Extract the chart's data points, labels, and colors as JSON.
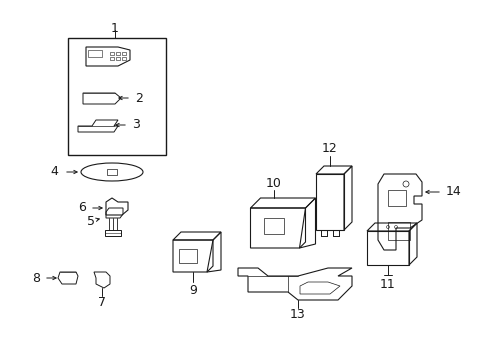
{
  "bg_color": "#ffffff",
  "line_color": "#1a1a1a",
  "figsize": [
    4.89,
    3.6
  ],
  "dpi": 100,
  "lw": 0.7
}
